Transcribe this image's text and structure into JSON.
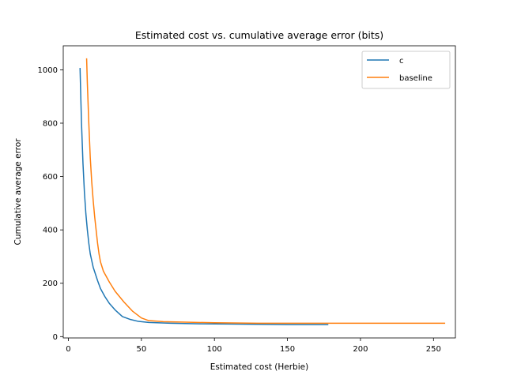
{
  "chart_data": {
    "type": "line",
    "title": "Estimated cost vs. cumulative average error (bits)",
    "xlabel": "Estimated cost (Herbie)",
    "ylabel": "Cumulative average error",
    "xlim": [
      -3.5,
      265
    ],
    "ylim": [
      -5,
      1090
    ],
    "xticks": [
      0,
      50,
      100,
      150,
      200,
      250
    ],
    "yticks": [
      0,
      200,
      400,
      600,
      800,
      1000
    ],
    "legend_position": "upper right",
    "series": [
      {
        "name": "c",
        "color": "#1f77b4",
        "x": [
          8,
          8.5,
          9,
          10,
          11,
          12,
          13,
          14,
          15,
          17,
          20,
          22,
          25,
          28,
          32,
          37,
          42,
          48,
          55,
          70,
          90,
          110,
          130,
          150,
          178
        ],
        "y": [
          1007,
          900,
          800,
          650,
          540,
          460,
          400,
          350,
          310,
          260,
          210,
          180,
          150,
          125,
          100,
          75,
          65,
          57,
          53,
          50,
          48,
          47,
          46,
          45,
          45
        ]
      },
      {
        "name": "baseline",
        "color": "#ff7f0e",
        "x": [
          12.5,
          13,
          14,
          15,
          16,
          17,
          18,
          19,
          20,
          21,
          22,
          24,
          26,
          28,
          32,
          38,
          44,
          50,
          55,
          65,
          80,
          100,
          130,
          180,
          258
        ],
        "y": [
          1043,
          950,
          800,
          670,
          580,
          510,
          450,
          400,
          350,
          310,
          280,
          245,
          225,
          205,
          170,
          130,
          95,
          70,
          60,
          56,
          54,
          52,
          50,
          50,
          50
        ]
      }
    ]
  }
}
